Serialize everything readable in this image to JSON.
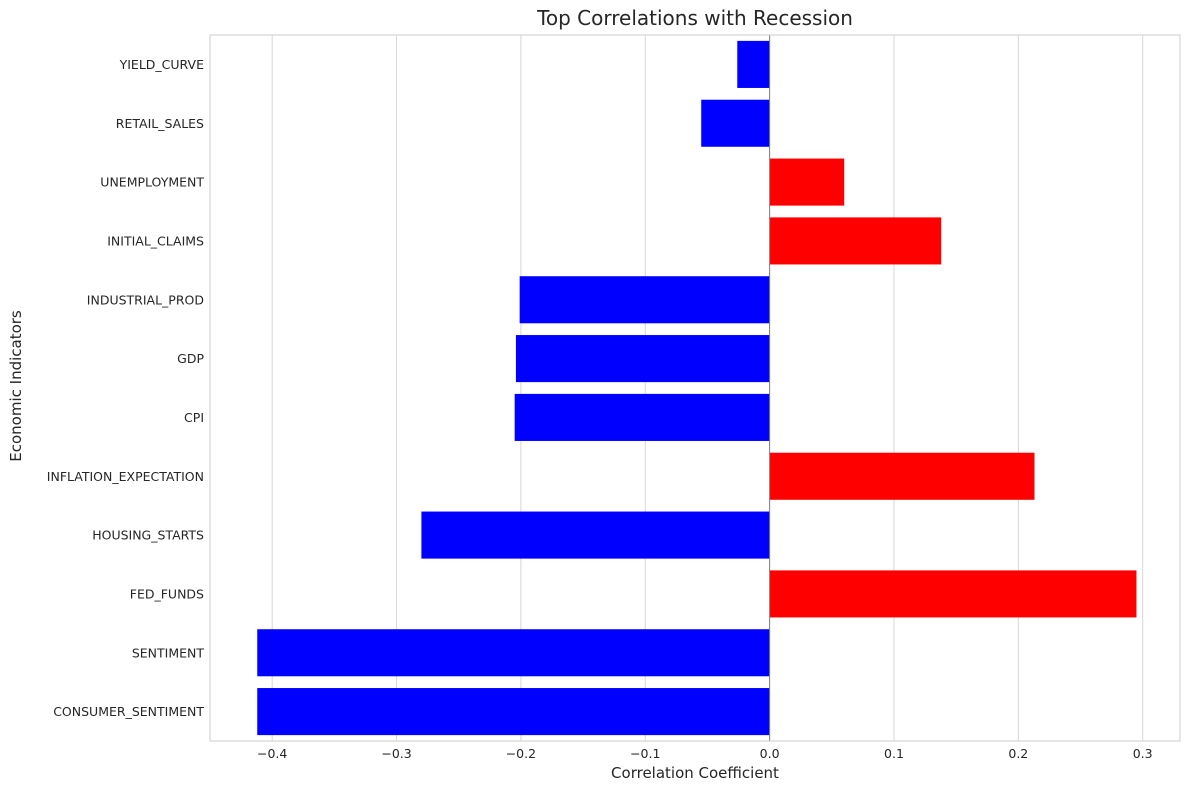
{
  "chart_data": {
    "type": "bar",
    "orientation": "horizontal",
    "title": "Top Correlations with Recession",
    "xlabel": "Correlation Coefficient",
    "ylabel": "Economic Indicators",
    "xlim": [
      -0.45,
      0.33
    ],
    "xticks": [
      -0.4,
      -0.3,
      -0.2,
      -0.1,
      0.0,
      0.1,
      0.2,
      0.3
    ],
    "xtick_labels": [
      "−0.4",
      "−0.3",
      "−0.2",
      "−0.1",
      "0.0",
      "0.1",
      "0.2",
      "0.3"
    ],
    "grid": "vertical",
    "categories": [
      "YIELD_CURVE",
      "RETAIL_SALES",
      "UNEMPLOYMENT",
      "INITIAL_CLAIMS",
      "INDUSTRIAL_PROD",
      "GDP",
      "CPI",
      "INFLATION_EXPECTATION",
      "HOUSING_STARTS",
      "FED_FUNDS",
      "SENTIMENT",
      "CONSUMER_SENTIMENT"
    ],
    "values": [
      -0.026,
      -0.055,
      0.06,
      0.138,
      -0.201,
      -0.204,
      -0.205,
      0.213,
      -0.28,
      0.295,
      -0.412,
      -0.412
    ],
    "colors": {
      "positive": "#ff0000",
      "negative": "#0000ff"
    }
  }
}
